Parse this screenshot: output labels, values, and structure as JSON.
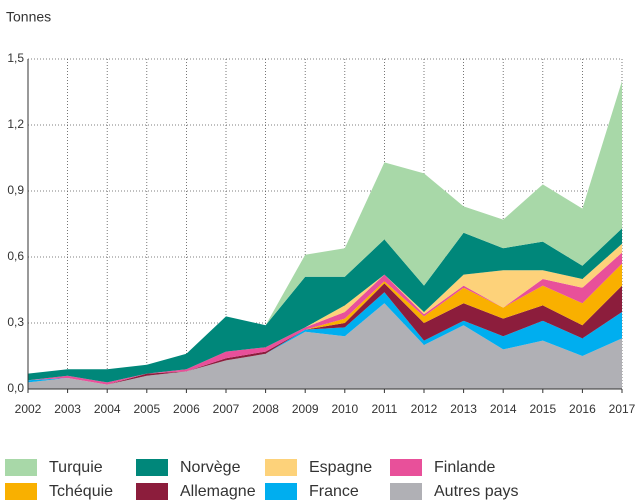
{
  "chart_data": {
    "type": "stacked-area",
    "y_label": "Tonnes",
    "x": [
      2002,
      2003,
      2004,
      2005,
      2006,
      2007,
      2008,
      2009,
      2010,
      2011,
      2012,
      2013,
      2014,
      2015,
      2016,
      2017
    ],
    "xlim": [
      2002,
      2017
    ],
    "xticks": [
      2002,
      2003,
      2004,
      2005,
      2006,
      2007,
      2008,
      2009,
      2010,
      2011,
      2012,
      2013,
      2014,
      2015,
      2016,
      2017
    ],
    "ylim": [
      0,
      1.5
    ],
    "yticks": [
      {
        "value": 0,
        "label": "0,0"
      },
      {
        "value": 0.3,
        "label": "0,3"
      },
      {
        "value": 0.6,
        "label": "0,6"
      },
      {
        "value": 0.9,
        "label": "0,9"
      },
      {
        "value": 1.2,
        "label": "1,2"
      },
      {
        "value": 1.5,
        "label": "1,5"
      }
    ],
    "grid": true,
    "legend": "bottom",
    "series": [
      {
        "name": "Turquie",
        "color": "#a8d8a8",
        "values": [
          0,
          0,
          0,
          0,
          0,
          0,
          0,
          0.1,
          0.13,
          0.35,
          0.51,
          0.12,
          0.13,
          0.26,
          0.26,
          0.67
        ]
      },
      {
        "name": "Norvège",
        "color": "#00877a",
        "values": [
          0.03,
          0.03,
          0.06,
          0.04,
          0.07,
          0.16,
          0.1,
          0.23,
          0.13,
          0.16,
          0.12,
          0.19,
          0.1,
          0.13,
          0.06,
          0.07
        ]
      },
      {
        "name": "Espagne",
        "color": "#fdd27a",
        "values": [
          0,
          0,
          0,
          0,
          0,
          0,
          0,
          0,
          0.03,
          0,
          0.01,
          0.05,
          0.17,
          0.04,
          0.04,
          0.04
        ]
      },
      {
        "name": "Finlande",
        "color": "#e8509a",
        "values": [
          0,
          0.01,
          0.01,
          0,
          0.01,
          0.03,
          0.02,
          0.01,
          0.03,
          0.03,
          0.01,
          0.01,
          0,
          0.03,
          0.07,
          0.05
        ]
      },
      {
        "name": "Tchéquie",
        "color": "#f9b000",
        "values": [
          0,
          0,
          0,
          0,
          0,
          0,
          0,
          0,
          0.02,
          0.01,
          0.03,
          0.07,
          0.05,
          0.09,
          0.1,
          0.1
        ]
      },
      {
        "name": "Allemagne",
        "color": "#8c1d3c",
        "values": [
          0,
          0,
          0,
          0.01,
          0,
          0.01,
          0.01,
          0,
          0.02,
          0.04,
          0.08,
          0.08,
          0.08,
          0.07,
          0.06,
          0.12
        ]
      },
      {
        "name": "France",
        "color": "#00aeef",
        "values": [
          0.01,
          0,
          0,
          0,
          0,
          0,
          0,
          0.01,
          0.04,
          0.05,
          0.02,
          0.02,
          0.06,
          0.09,
          0.08,
          0.12
        ]
      },
      {
        "name": "Autres pays",
        "color": "#b0b0b5",
        "values": [
          0.03,
          0.05,
          0.02,
          0.06,
          0.08,
          0.13,
          0.16,
          0.26,
          0.24,
          0.39,
          0.2,
          0.29,
          0.18,
          0.22,
          0.15,
          0.23
        ]
      }
    ]
  }
}
